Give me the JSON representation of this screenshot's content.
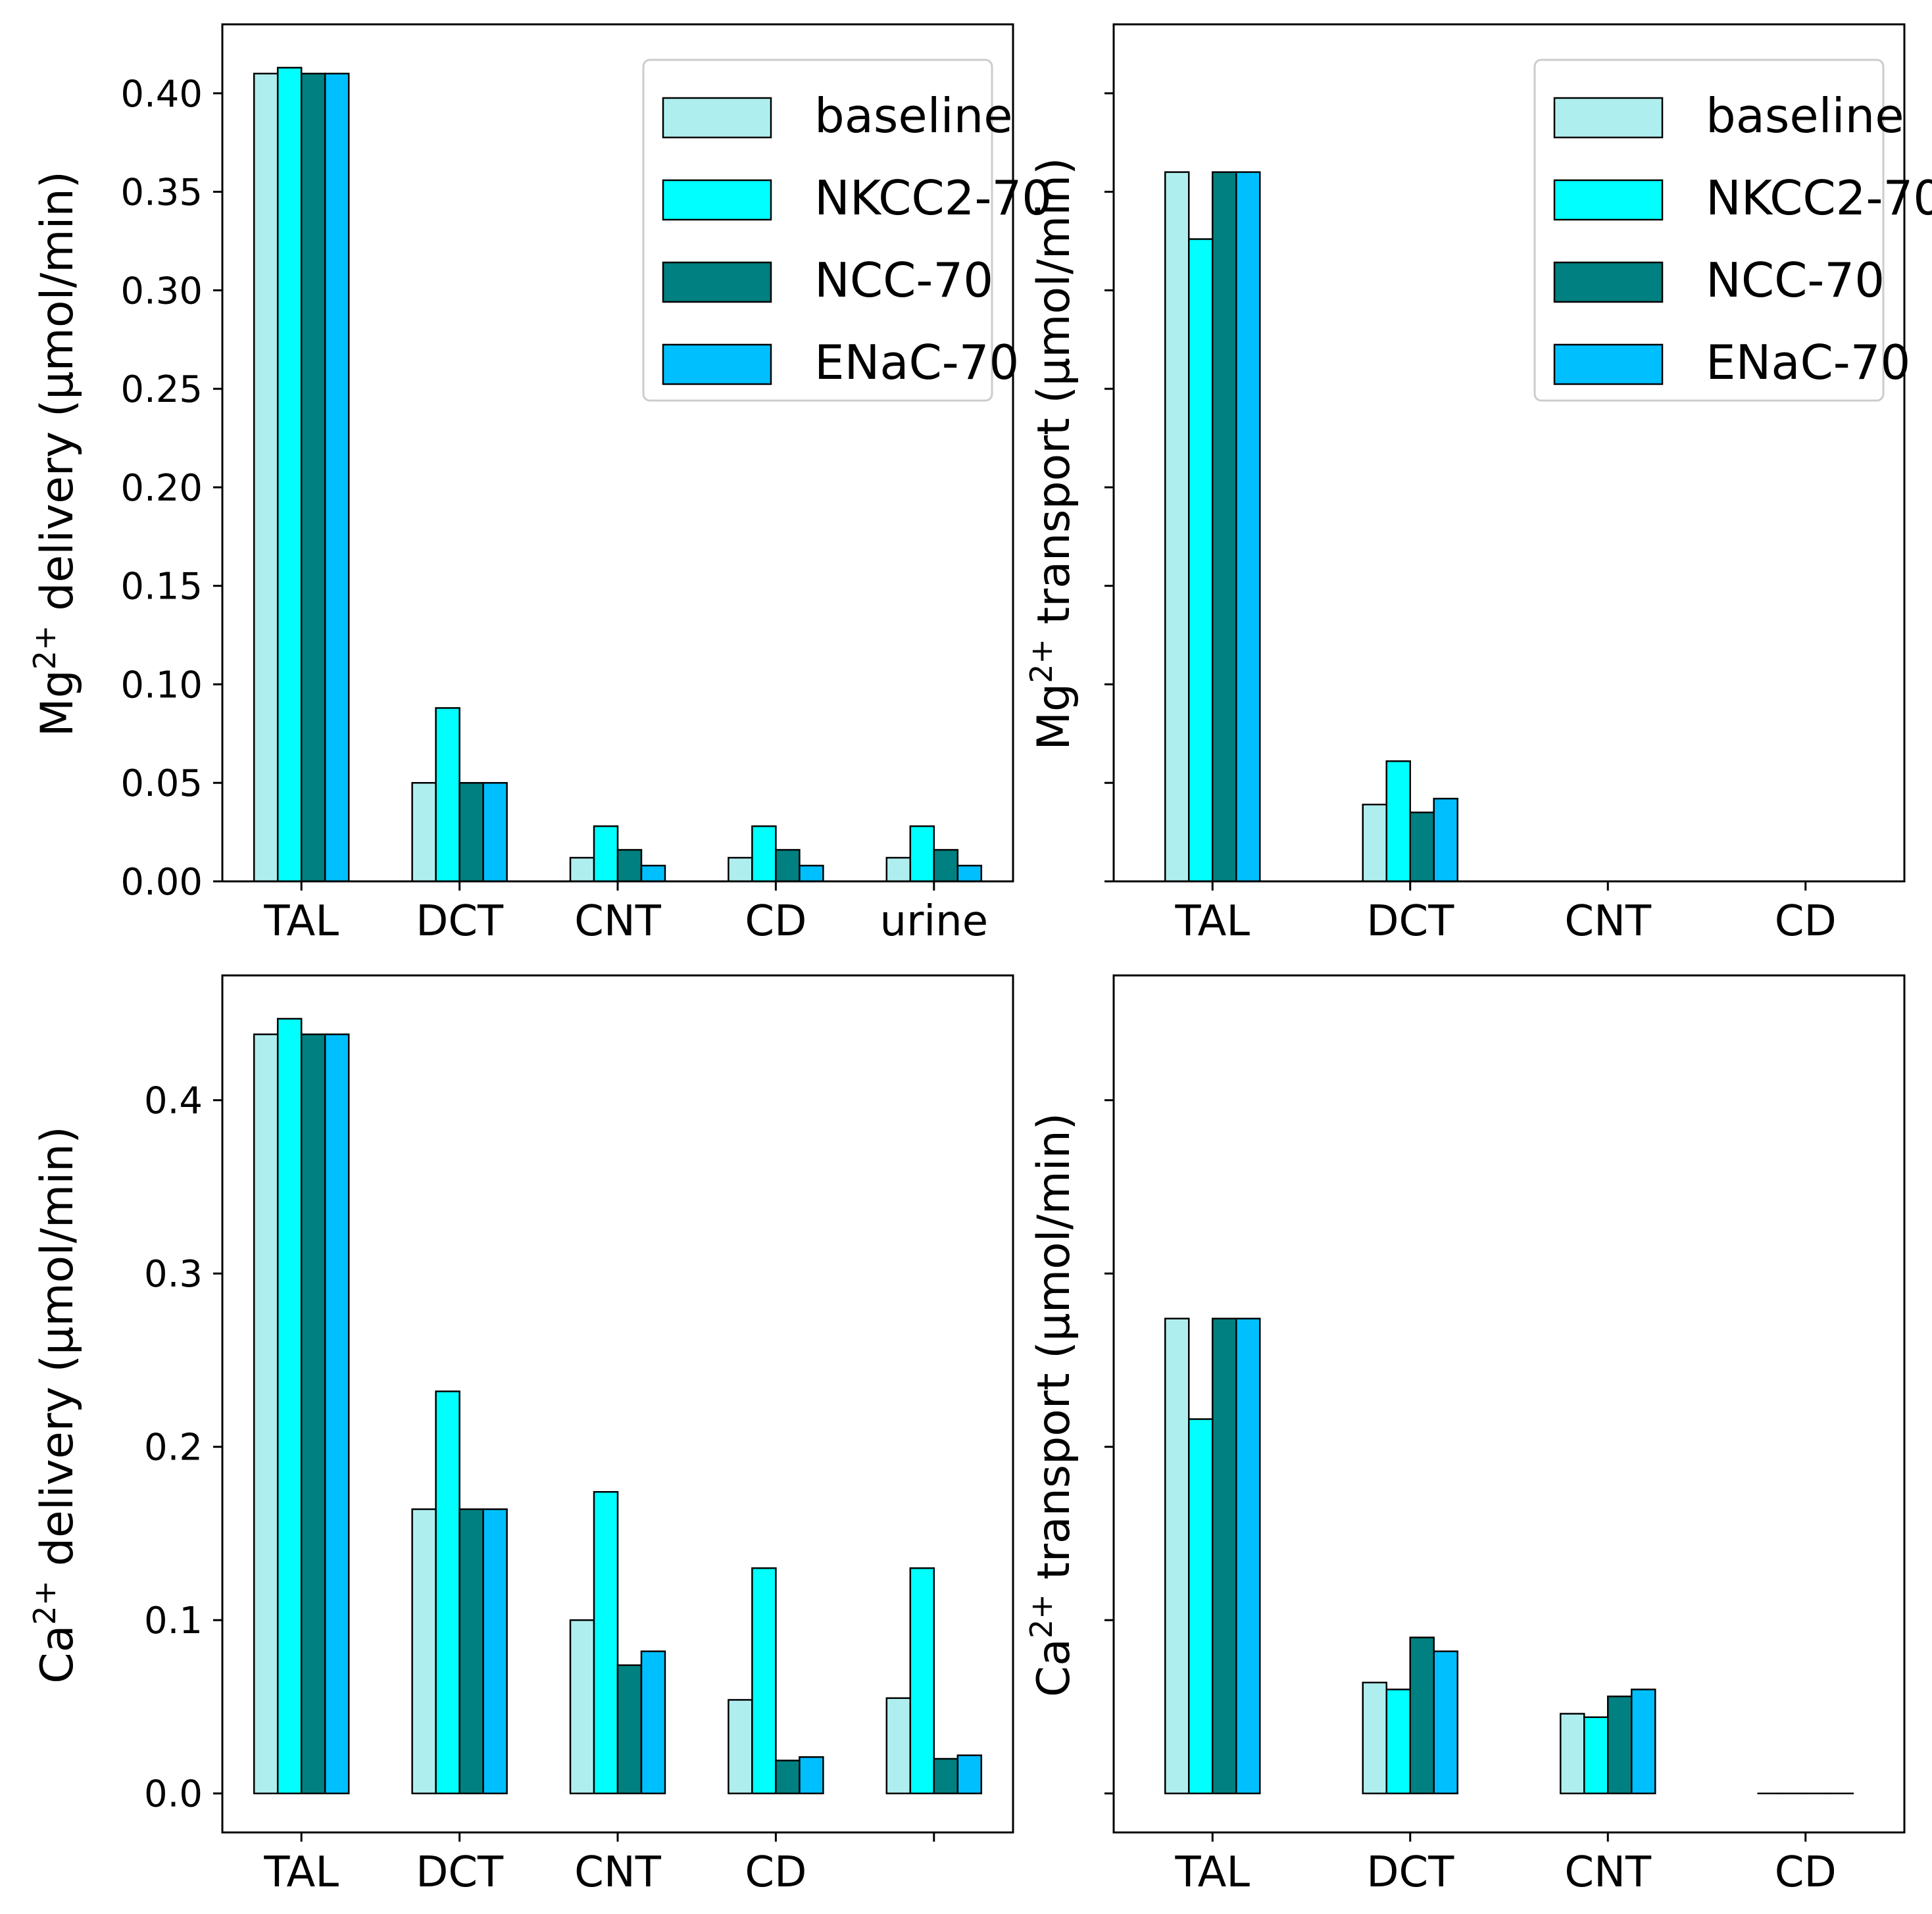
{
  "legend_labels": [
    "baseline",
    "NKCC2-70",
    "NCC-70",
    "ENaC-70"
  ],
  "series_colors": [
    "#afeeee",
    "#00ffff",
    "#008080",
    "#00bfff"
  ],
  "chart_data": [
    {
      "id": "mg-delivery",
      "type": "bar",
      "title": "",
      "ylabel_prefix": "Mg",
      "ylabel_sup": "2+",
      "ylabel_suffix": " delivery (μmol/min)",
      "categories": [
        "TAL",
        "DCT",
        "CNT",
        "CD",
        "urine"
      ],
      "ylim": [
        0,
        0.435
      ],
      "yticks": [
        0.0,
        0.05,
        0.1,
        0.15,
        0.2,
        0.25,
        0.3,
        0.35,
        0.4
      ],
      "ytick_labels": [
        "0.00",
        "0.05",
        "0.10",
        "0.15",
        "0.20",
        "0.25",
        "0.30",
        "0.35",
        "0.40"
      ],
      "legend": "top-right",
      "series": [
        {
          "name": "baseline",
          "values": [
            0.41,
            0.05,
            0.012,
            0.012,
            0.012
          ]
        },
        {
          "name": "NKCC2-70",
          "values": [
            0.413,
            0.088,
            0.028,
            0.028,
            0.028
          ]
        },
        {
          "name": "NCC-70",
          "values": [
            0.41,
            0.05,
            0.016,
            0.016,
            0.016
          ]
        },
        {
          "name": "ENaC-70",
          "values": [
            0.41,
            0.05,
            0.008,
            0.008,
            0.008
          ]
        }
      ]
    },
    {
      "id": "mg-transport",
      "type": "bar",
      "title": "",
      "ylabel_prefix": "Mg",
      "ylabel_sup": "2+",
      "ylabel_suffix": " transport (μmol/min)",
      "categories": [
        "TAL",
        "DCT",
        "CNT",
        "CD"
      ],
      "ylim": [
        0,
        0.435
      ],
      "yticks": [
        0.0,
        0.05,
        0.1,
        0.15,
        0.2,
        0.25,
        0.3,
        0.35,
        0.4
      ],
      "ytick_labels": [],
      "legend": "top-right",
      "series": [
        {
          "name": "baseline",
          "values": [
            0.36,
            0.039,
            0.0,
            0.0
          ]
        },
        {
          "name": "NKCC2-70",
          "values": [
            0.326,
            0.061,
            0.0,
            0.0
          ]
        },
        {
          "name": "NCC-70",
          "values": [
            0.36,
            0.035,
            0.0,
            0.0
          ]
        },
        {
          "name": "ENaC-70",
          "values": [
            0.36,
            0.042,
            0.0,
            0.0
          ]
        }
      ]
    },
    {
      "id": "ca-delivery",
      "type": "bar",
      "title": "",
      "ylabel_prefix": "Ca",
      "ylabel_sup": "2+",
      "ylabel_suffix": " delivery (μmol/min)",
      "categories": [
        "TAL",
        "DCT",
        "CNT",
        "CD",
        ""
      ],
      "ylim": [
        -0.0225,
        0.472
      ],
      "yticks": [
        0.0,
        0.1,
        0.2,
        0.3,
        0.4
      ],
      "ytick_labels": [
        "0.0",
        "0.1",
        "0.2",
        "0.3",
        "0.4"
      ],
      "legend": "none",
      "series": [
        {
          "name": "baseline",
          "values": [
            0.438,
            0.164,
            0.1,
            0.054,
            0.055
          ]
        },
        {
          "name": "NKCC2-70",
          "values": [
            0.447,
            0.232,
            0.174,
            0.13,
            0.13
          ]
        },
        {
          "name": "NCC-70",
          "values": [
            0.438,
            0.164,
            0.074,
            0.019,
            0.02
          ]
        },
        {
          "name": "ENaC-70",
          "values": [
            0.438,
            0.164,
            0.082,
            0.021,
            0.022
          ]
        }
      ]
    },
    {
      "id": "ca-transport",
      "type": "bar",
      "title": "",
      "ylabel_prefix": "Ca",
      "ylabel_sup": "2+",
      "ylabel_suffix": " transport (μmol/min)",
      "categories": [
        "TAL",
        "DCT",
        "CNT",
        "CD"
      ],
      "ylim": [
        -0.0225,
        0.472
      ],
      "yticks": [
        0.0,
        0.1,
        0.2,
        0.3,
        0.4
      ],
      "ytick_labels": [],
      "legend": "none",
      "series": [
        {
          "name": "baseline",
          "values": [
            0.274,
            0.064,
            0.046,
            0.0
          ]
        },
        {
          "name": "NKCC2-70",
          "values": [
            0.216,
            0.06,
            0.044,
            0.0
          ]
        },
        {
          "name": "NCC-70",
          "values": [
            0.274,
            0.09,
            0.056,
            0.0
          ]
        },
        {
          "name": "ENaC-70",
          "values": [
            0.274,
            0.082,
            0.06,
            0.0
          ]
        }
      ]
    }
  ]
}
